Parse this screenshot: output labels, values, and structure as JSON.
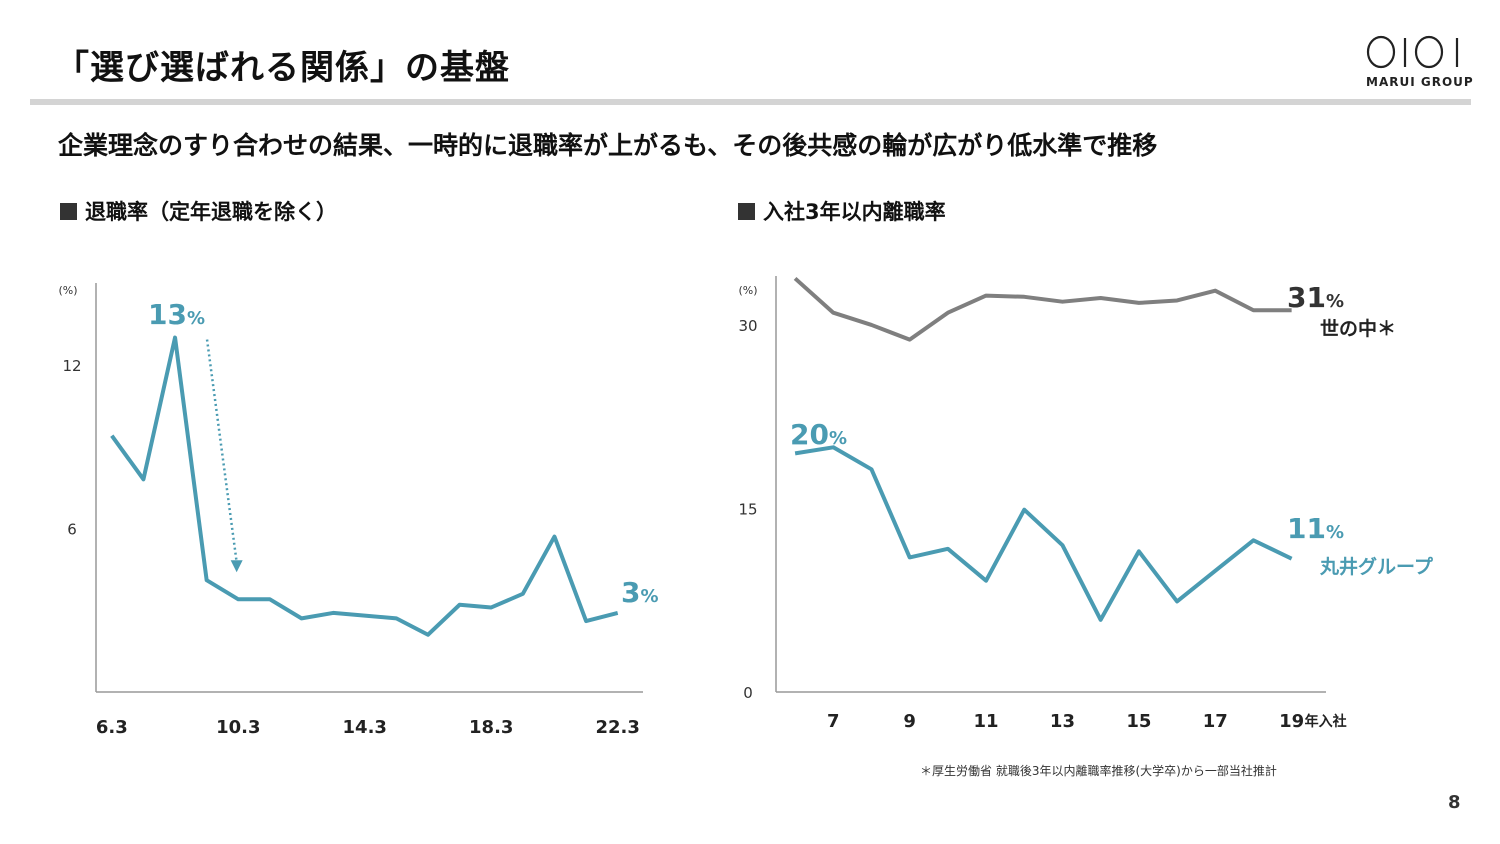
{
  "title": "「選び選ばれる関係」の基盤",
  "subtitle": "企業理念のすり合わせの結果、一時的に退職率が上がるも、その後共感の輪が広がり低水準で推移",
  "logo": {
    "text": "MARUI GROUP"
  },
  "footnote": "＊厚生労働省 就職後3年以内離職率推移(大学卒)から一部当社推計",
  "page_number": "8",
  "colors": {
    "teal": "#4a9bb2",
    "gray": "#7f7f7f",
    "axis": "#999999"
  },
  "chart_data": [
    {
      "type": "line",
      "title": "退職率（定年退職を除く）",
      "unit_label": "(%)",
      "x": [
        6.3,
        7.3,
        8.3,
        9.3,
        10.3,
        11.3,
        12.3,
        13.3,
        14.3,
        15.3,
        16.3,
        17.3,
        18.3,
        19.3,
        20.3,
        21.3,
        22.3
      ],
      "xticks": [
        "6.3",
        "10.3",
        "14.3",
        "18.3",
        "22.3"
      ],
      "yticks": [
        "6",
        "12"
      ],
      "ylim": [
        0,
        15
      ],
      "series": [
        {
          "values": [
            9.4,
            7.8,
            13.0,
            4.1,
            3.4,
            3.4,
            2.7,
            2.9,
            2.8,
            2.7,
            2.1,
            3.2,
            3.1,
            3.6,
            5.7,
            2.6,
            2.9
          ]
        }
      ],
      "annotations": {
        "peak": {
          "num": "13",
          "unit": "%"
        },
        "last": {
          "num": "3",
          "unit": "%"
        }
      }
    },
    {
      "type": "line",
      "title": "入社3年以内離職率",
      "unit_label": "(%)",
      "x": [
        6,
        7,
        8,
        9,
        10,
        11,
        12,
        13,
        14,
        15,
        16,
        17,
        18,
        19
      ],
      "xticks": [
        "7",
        "9",
        "11",
        "13",
        "15",
        "17",
        "19"
      ],
      "xtick_suffix": "年入社",
      "yticks": [
        "0",
        "15",
        "30"
      ],
      "ylim": [
        0,
        34
      ],
      "series": [
        {
          "name": "世の中＊",
          "values": [
            33.8,
            31.0,
            30.0,
            28.8,
            31.0,
            32.4,
            32.3,
            31.9,
            32.2,
            31.8,
            32.0,
            32.8,
            31.2,
            31.2
          ],
          "label_num": "31",
          "label_unit": "%"
        },
        {
          "name": "丸井グループ",
          "values": [
            19.5,
            20.0,
            18.2,
            11.0,
            11.7,
            9.1,
            14.9,
            12.0,
            5.9,
            11.5,
            7.4,
            9.9,
            12.4,
            10.9
          ],
          "label_num": "11",
          "label_unit": "%",
          "start_num": "20",
          "start_unit": "%"
        }
      ]
    }
  ]
}
